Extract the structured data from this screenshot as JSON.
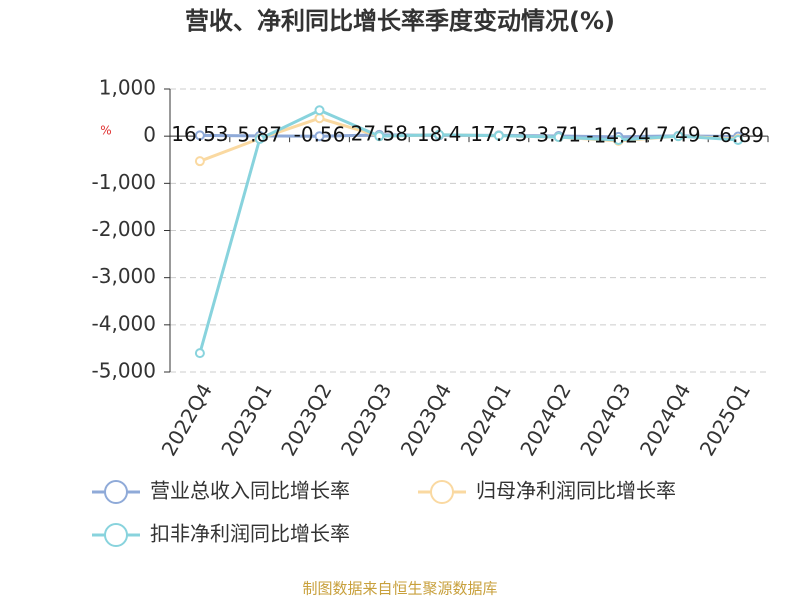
{
  "chart_data": {
    "type": "line",
    "title": "营收、净利同比增长率季度变动情况(%)",
    "y_unit": "%",
    "categories": [
      "2022Q4",
      "2023Q1",
      "2023Q2",
      "2023Q3",
      "2023Q4",
      "2024Q1",
      "2024Q2",
      "2024Q3",
      "2024Q4",
      "2025Q1"
    ],
    "series": [
      {
        "name": "营业总收入同比增长率",
        "color": "#8faad8",
        "values": [
          16.53,
          5.87,
          -0.56,
          27.58,
          18.4,
          17.73,
          3.71,
          -14.24,
          7.49,
          -6.89
        ],
        "show_labels": true
      },
      {
        "name": "归母净利润同比增长率",
        "color": "#fad9a1",
        "values": [
          -530,
          -50,
          380,
          0,
          30,
          10,
          -20,
          -100,
          0,
          -60
        ],
        "show_labels": false
      },
      {
        "name": "扣非净利润同比增长率",
        "color": "#88d3dd",
        "values": [
          -4600,
          -60,
          550,
          0,
          30,
          10,
          -20,
          -80,
          0,
          -80
        ],
        "show_labels": false
      }
    ],
    "ylim": [
      -5000,
      1000
    ],
    "yticks": [
      {
        "value": -5000,
        "label": "-5,000"
      },
      {
        "value": -4000,
        "label": "-4,000"
      },
      {
        "value": -3000,
        "label": "-3,000"
      },
      {
        "value": -2000,
        "label": "-2,000"
      },
      {
        "value": -1000,
        "label": "-1,000"
      },
      0,
      {
        "value": 1000,
        "label": "1,000"
      }
    ],
    "grid": true,
    "source": "制图数据来自恒生聚源数据库"
  }
}
